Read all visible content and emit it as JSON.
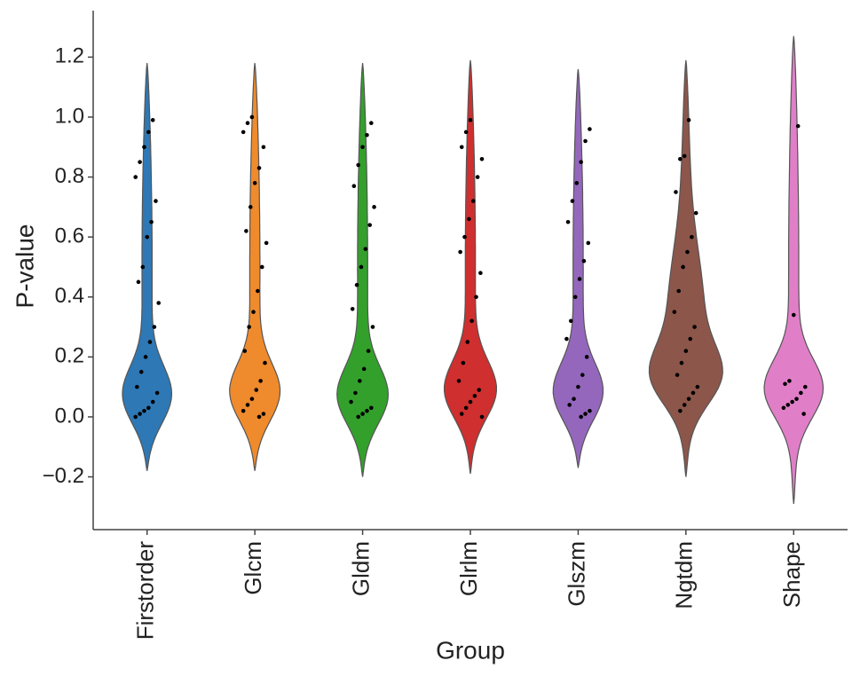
{
  "chart_data": {
    "type": "violin",
    "x_label": "Group",
    "y_label": "P-value",
    "ylim": [
      -0.376,
      1.355
    ],
    "yticks": [
      {
        "value": -0.2,
        "label": "−0.2"
      },
      {
        "value": 0,
        "label": "0.0"
      },
      {
        "value": 0.2,
        "label": "0.2"
      },
      {
        "value": 0.4,
        "label": "0.4"
      },
      {
        "value": 0.6,
        "label": "0.6"
      },
      {
        "value": 0.8,
        "label": "0.8"
      },
      {
        "value": 1,
        "label": "1.0"
      },
      {
        "value": 1.2,
        "label": "1.2"
      }
    ],
    "categories": [
      "Firstorder",
      "Glcm",
      "Gldm",
      "Glrlm",
      "Glszm",
      "Ngtdm",
      "Shape"
    ],
    "series": [
      {
        "name": "Firstorder",
        "color": "#2e78b5",
        "min": -0.18,
        "max": 1.18,
        "mode": 0.05,
        "points": [
          0.0,
          0.01,
          0.02,
          0.03,
          0.05,
          0.08,
          0.1,
          0.15,
          0.2,
          0.25,
          0.3,
          0.38,
          0.45,
          0.5,
          0.6,
          0.65,
          0.72,
          0.8,
          0.85,
          0.9,
          0.95,
          0.99
        ]
      },
      {
        "name": "Glcm",
        "color": "#ef8b2c",
        "min": -0.18,
        "max": 1.18,
        "mode": 0.06,
        "points": [
          0.0,
          0.01,
          0.02,
          0.04,
          0.06,
          0.09,
          0.12,
          0.18,
          0.22,
          0.3,
          0.35,
          0.42,
          0.5,
          0.58,
          0.62,
          0.7,
          0.78,
          0.83,
          0.9,
          0.95,
          0.98,
          1.0
        ]
      },
      {
        "name": "Gldm",
        "color": "#33a02c",
        "min": -0.2,
        "max": 1.18,
        "mode": 0.05,
        "points": [
          0.0,
          0.01,
          0.02,
          0.03,
          0.05,
          0.08,
          0.12,
          0.16,
          0.22,
          0.3,
          0.36,
          0.44,
          0.5,
          0.56,
          0.64,
          0.7,
          0.77,
          0.84,
          0.9,
          0.94,
          0.98
        ]
      },
      {
        "name": "Glrlm",
        "color": "#cf2f2f",
        "min": -0.19,
        "max": 1.19,
        "mode": 0.07,
        "points": [
          0.0,
          0.01,
          0.03,
          0.05,
          0.07,
          0.09,
          0.12,
          0.18,
          0.25,
          0.32,
          0.4,
          0.48,
          0.55,
          0.6,
          0.66,
          0.72,
          0.8,
          0.86,
          0.9,
          0.95,
          0.99
        ]
      },
      {
        "name": "Glszm",
        "color": "#9467bd",
        "min": -0.17,
        "max": 1.16,
        "mode": 0.06,
        "points": [
          0.0,
          0.01,
          0.02,
          0.04,
          0.06,
          0.1,
          0.14,
          0.2,
          0.26,
          0.32,
          0.4,
          0.46,
          0.52,
          0.58,
          0.65,
          0.72,
          0.78,
          0.85,
          0.92,
          0.96
        ]
      },
      {
        "name": "Ngtdm",
        "color": "#8c564b",
        "min": -0.2,
        "max": 1.19,
        "mode": 0.12,
        "points": [
          0.02,
          0.04,
          0.06,
          0.08,
          0.1,
          0.14,
          0.18,
          0.22,
          0.26,
          0.3,
          0.35,
          0.42,
          0.5,
          0.55,
          0.6,
          0.68,
          0.75,
          0.86,
          0.87,
          0.99
        ]
      },
      {
        "name": "Shape",
        "color": "#e07fc8",
        "min": -0.29,
        "max": 1.27,
        "mode": 0.08,
        "points": [
          0.01,
          0.03,
          0.04,
          0.05,
          0.06,
          0.08,
          0.1,
          0.11,
          0.12,
          0.34,
          0.97
        ]
      }
    ]
  }
}
